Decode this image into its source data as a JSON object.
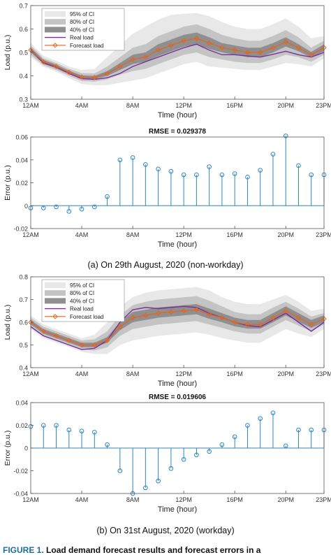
{
  "charts": [
    {
      "xlabel": "Time (hour)",
      "ylabel": "Load (p.u.)",
      "title": "",
      "xticks": [
        "12AM",
        "4AM",
        "8AM",
        "12PM",
        "16PM",
        "20PM",
        "23PM"
      ],
      "yticks": [
        "0.3",
        "0.4",
        "0.5",
        "0.6",
        "0.7"
      ],
      "legend": [
        "95% of CI",
        "80% of CI",
        "40% of CI",
        "Real load",
        "Forecast load"
      ]
    },
    {
      "xlabel": "Time (hour)",
      "ylabel": "Error (p.u.)",
      "title": "RMSE = 0.029378",
      "xticks": [
        "12AM",
        "4AM",
        "8AM",
        "12PM",
        "16PM",
        "20PM",
        "23PM"
      ],
      "yticks": [
        "-0.02",
        "0",
        "0.02",
        "0.04",
        "0.06"
      ]
    },
    {
      "xlabel": "Time (hour)",
      "ylabel": "Load (p.u.)",
      "title": "",
      "xticks": [
        "12AM",
        "4AM",
        "8AM",
        "12PM",
        "16PM",
        "20PM",
        "23PM"
      ],
      "yticks": [
        "0.4",
        "0.5",
        "0.6",
        "0.7",
        "0.8"
      ],
      "legend": [
        "95% of CI",
        "80% of CI",
        "40% of CI",
        "Real load",
        "Forecast load"
      ]
    },
    {
      "xlabel": "Time (hour)",
      "ylabel": "Error (p.u.)",
      "title": "RMSE = 0.019606",
      "xticks": [
        "12AM",
        "4AM",
        "8AM",
        "12PM",
        "16PM",
        "20PM",
        "23PM"
      ],
      "yticks": [
        "-0.04",
        "-0.02",
        "0",
        "0.02",
        "0.04"
      ]
    }
  ],
  "captions": {
    "a": "(a)     On 29th August, 2020 (non-workday)",
    "b": "(b) On 31st August, 2020 (workday)",
    "figure_label": "FIGURE 1.",
    "figure_text": "Load demand forecast results and forecast errors in a"
  },
  "colors": {
    "ci95": "#e8e8e8",
    "ci80": "#c4c4c4",
    "ci40": "#8f8f8f",
    "real": "#7b2f9e",
    "forecast": "#e3641e",
    "stem": "#2e86c1",
    "axis": "#555555"
  },
  "chart_data": [
    {
      "type": "area",
      "x": [
        0,
        1,
        2,
        3,
        4,
        5,
        6,
        7,
        8,
        9,
        10,
        11,
        12,
        13,
        14,
        15,
        16,
        17,
        18,
        19,
        20,
        21,
        22,
        23
      ],
      "xlim": [
        0,
        23
      ],
      "ylim": [
        0.3,
        0.7
      ],
      "series": [
        {
          "name": "Real load",
          "values": [
            0.512,
            0.455,
            0.438,
            0.41,
            0.388,
            0.385,
            0.392,
            0.41,
            0.44,
            0.46,
            0.48,
            0.5,
            0.52,
            0.535,
            0.51,
            0.49,
            0.49,
            0.485,
            0.48,
            0.492,
            0.505,
            0.49,
            0.48,
            0.5
          ]
        },
        {
          "name": "Forecast load",
          "values": [
            0.51,
            0.46,
            0.44,
            0.415,
            0.395,
            0.393,
            0.41,
            0.44,
            0.47,
            0.48,
            0.51,
            0.53,
            0.55,
            0.56,
            0.54,
            0.52,
            0.51,
            0.5,
            0.5,
            0.52,
            0.545,
            0.52,
            0.49,
            0.52
          ]
        },
        {
          "name": "40% of CI",
          "lower": [
            0.5,
            0.452,
            0.432,
            0.408,
            0.388,
            0.386,
            0.4,
            0.425,
            0.45,
            0.46,
            0.485,
            0.505,
            0.525,
            0.535,
            0.515,
            0.5,
            0.49,
            0.48,
            0.48,
            0.5,
            0.525,
            0.505,
            0.478,
            0.505
          ],
          "upper": [
            0.52,
            0.468,
            0.448,
            0.422,
            0.402,
            0.4,
            0.42,
            0.455,
            0.49,
            0.5,
            0.535,
            0.555,
            0.575,
            0.585,
            0.565,
            0.54,
            0.53,
            0.52,
            0.52,
            0.54,
            0.565,
            0.535,
            0.502,
            0.535
          ]
        },
        {
          "name": "80% of CI",
          "lower": [
            0.49,
            0.445,
            0.425,
            0.4,
            0.378,
            0.375,
            0.385,
            0.405,
            0.42,
            0.43,
            0.45,
            0.47,
            0.49,
            0.5,
            0.48,
            0.47,
            0.46,
            0.455,
            0.455,
            0.47,
            0.49,
            0.48,
            0.46,
            0.49
          ],
          "upper": [
            0.53,
            0.475,
            0.455,
            0.43,
            0.412,
            0.41,
            0.44,
            0.48,
            0.52,
            0.535,
            0.57,
            0.59,
            0.61,
            0.62,
            0.6,
            0.575,
            0.56,
            0.55,
            0.55,
            0.57,
            0.595,
            0.565,
            0.52,
            0.55
          ]
        },
        {
          "name": "95% of CI",
          "lower": [
            0.48,
            0.438,
            0.418,
            0.39,
            0.365,
            0.36,
            0.36,
            0.37,
            0.38,
            0.39,
            0.41,
            0.43,
            0.45,
            0.46,
            0.44,
            0.435,
            0.43,
            0.425,
            0.425,
            0.44,
            0.455,
            0.45,
            0.44,
            0.475
          ],
          "upper": [
            0.54,
            0.485,
            0.465,
            0.44,
            0.425,
            0.43,
            0.48,
            0.53,
            0.58,
            0.61,
            0.64,
            0.66,
            0.665,
            0.668,
            0.655,
            0.63,
            0.61,
            0.6,
            0.6,
            0.62,
            0.645,
            0.61,
            0.56,
            0.57
          ]
        }
      ]
    },
    {
      "type": "stem",
      "x": [
        0,
        1,
        2,
        3,
        4,
        5,
        6,
        7,
        8,
        9,
        10,
        11,
        12,
        13,
        14,
        15,
        16,
        17,
        18,
        19,
        20,
        21,
        22,
        23
      ],
      "xlim": [
        0,
        23
      ],
      "ylim": [
        -0.02,
        0.06
      ],
      "values": [
        -0.002,
        -0.002,
        -0.001,
        -0.005,
        -0.003,
        -0.001,
        0.008,
        0.04,
        0.042,
        0.036,
        0.032,
        0.03,
        0.027,
        0.027,
        0.034,
        0.027,
        0.028,
        0.025,
        0.031,
        0.045,
        0.061,
        0.035,
        0.027,
        0.027
      ]
    },
    {
      "type": "area",
      "x": [
        0,
        1,
        2,
        3,
        4,
        5,
        6,
        7,
        8,
        9,
        10,
        11,
        12,
        13,
        14,
        15,
        16,
        17,
        18,
        19,
        20,
        21,
        22,
        23
      ],
      "xlim": [
        0,
        23
      ],
      "ylim": [
        0.4,
        0.8
      ],
      "series": [
        {
          "name": "Real load",
          "values": [
            0.58,
            0.54,
            0.52,
            0.5,
            0.48,
            0.485,
            0.52,
            0.6,
            0.655,
            0.665,
            0.66,
            0.665,
            0.67,
            0.665,
            0.64,
            0.62,
            0.6,
            0.585,
            0.58,
            0.61,
            0.64,
            0.6,
            0.56,
            0.6
          ]
        },
        {
          "name": "Forecast load",
          "values": [
            0.6,
            0.56,
            0.54,
            0.52,
            0.5,
            0.5,
            0.52,
            0.58,
            0.62,
            0.63,
            0.64,
            0.645,
            0.65,
            0.655,
            0.635,
            0.62,
            0.6,
            0.59,
            0.59,
            0.62,
            0.65,
            0.62,
            0.59,
            0.615
          ]
        },
        {
          "name": "40% of CI",
          "lower": [
            0.59,
            0.55,
            0.53,
            0.51,
            0.49,
            0.49,
            0.51,
            0.565,
            0.6,
            0.61,
            0.62,
            0.625,
            0.63,
            0.635,
            0.615,
            0.6,
            0.582,
            0.572,
            0.572,
            0.6,
            0.63,
            0.602,
            0.575,
            0.6
          ],
          "upper": [
            0.61,
            0.57,
            0.55,
            0.53,
            0.51,
            0.51,
            0.535,
            0.6,
            0.645,
            0.655,
            0.665,
            0.67,
            0.675,
            0.68,
            0.66,
            0.64,
            0.62,
            0.61,
            0.61,
            0.64,
            0.67,
            0.64,
            0.61,
            0.63
          ]
        },
        {
          "name": "80% of CI",
          "lower": [
            0.58,
            0.54,
            0.52,
            0.5,
            0.48,
            0.475,
            0.49,
            0.54,
            0.57,
            0.58,
            0.59,
            0.595,
            0.6,
            0.605,
            0.59,
            0.575,
            0.56,
            0.55,
            0.55,
            0.58,
            0.61,
            0.585,
            0.56,
            0.59
          ],
          "upper": [
            0.62,
            0.58,
            0.56,
            0.54,
            0.52,
            0.525,
            0.56,
            0.63,
            0.675,
            0.69,
            0.7,
            0.705,
            0.71,
            0.715,
            0.695,
            0.67,
            0.645,
            0.635,
            0.635,
            0.665,
            0.69,
            0.66,
            0.625,
            0.64
          ]
        },
        {
          "name": "95% of CI",
          "lower": [
            0.57,
            0.53,
            0.51,
            0.49,
            0.47,
            0.46,
            0.46,
            0.5,
            0.52,
            0.53,
            0.54,
            0.545,
            0.55,
            0.555,
            0.545,
            0.53,
            0.52,
            0.51,
            0.51,
            0.54,
            0.57,
            0.55,
            0.535,
            0.57
          ],
          "upper": [
            0.63,
            0.59,
            0.57,
            0.55,
            0.53,
            0.545,
            0.6,
            0.67,
            0.71,
            0.73,
            0.74,
            0.745,
            0.75,
            0.755,
            0.74,
            0.71,
            0.69,
            0.68,
            0.68,
            0.7,
            0.72,
            0.69,
            0.65,
            0.66
          ]
        }
      ]
    },
    {
      "type": "stem",
      "x": [
        0,
        1,
        2,
        3,
        4,
        5,
        6,
        7,
        8,
        9,
        10,
        11,
        12,
        13,
        14,
        15,
        16,
        17,
        18,
        19,
        20,
        21,
        22,
        23
      ],
      "xlim": [
        0,
        23
      ],
      "ylim": [
        -0.04,
        0.04
      ],
      "values": [
        0.019,
        0.02,
        0.02,
        0.016,
        0.015,
        0.014,
        0.003,
        -0.02,
        -0.04,
        -0.035,
        -0.029,
        -0.018,
        -0.01,
        -0.006,
        -0.003,
        0.003,
        0.01,
        0.02,
        0.026,
        0.031,
        0.002,
        0.016,
        0.016,
        0.016
      ]
    }
  ]
}
